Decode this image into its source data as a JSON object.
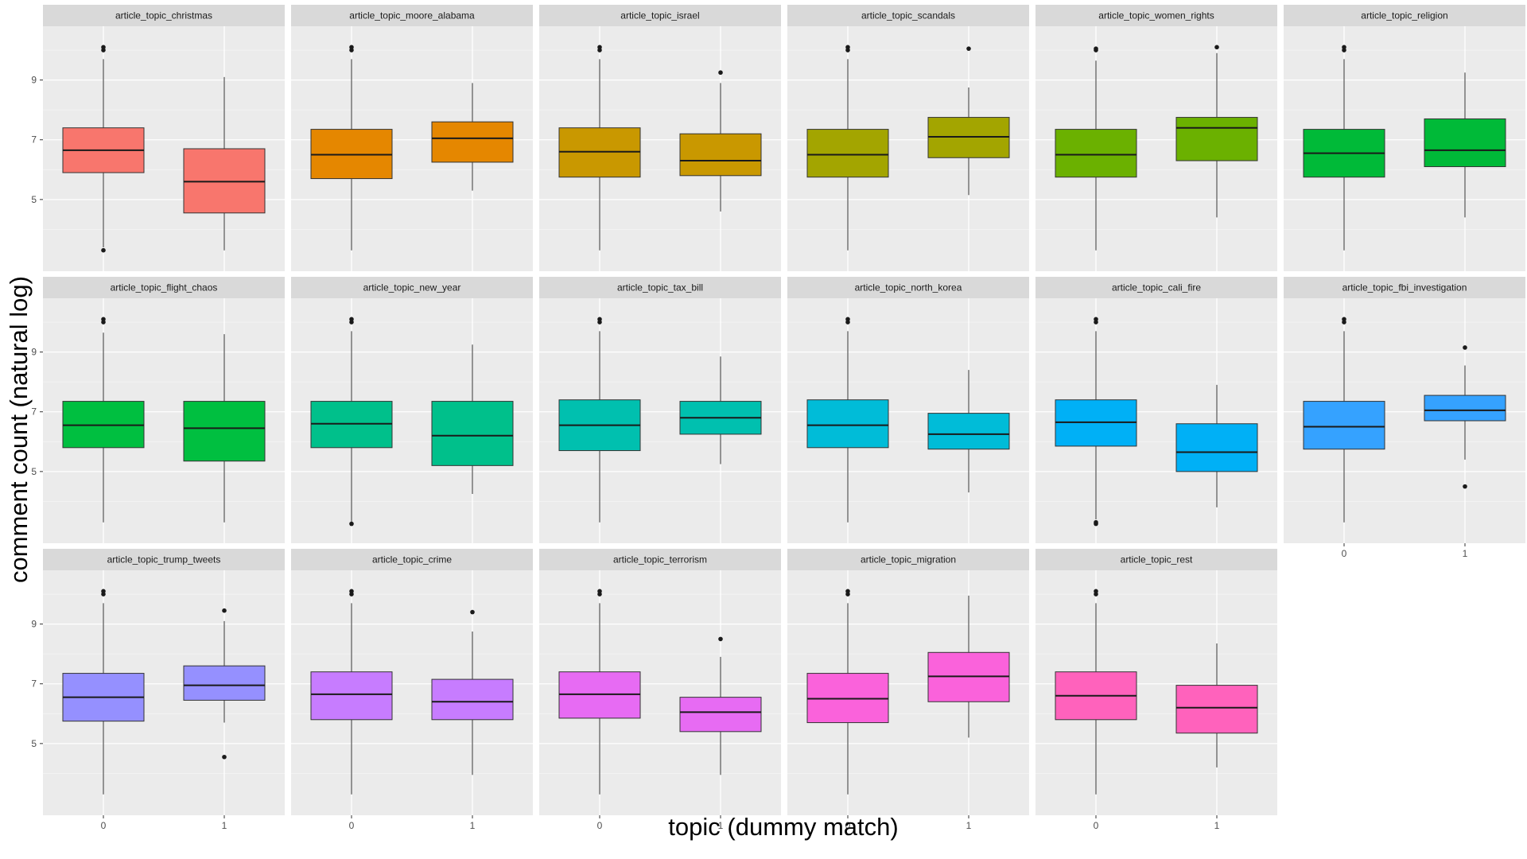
{
  "chart_data": {
    "type": "boxplot",
    "xlabel": "topic (dummy match)",
    "ylabel": "comment count (natural log)",
    "x_categories": [
      "0",
      "1"
    ],
    "y_ticks": [
      5,
      7,
      9
    ],
    "ylim": [
      2.6,
      10.8
    ],
    "grid": true,
    "legend": "none",
    "facets": [
      {
        "name": "article_topic_christmas",
        "color": "#F8766D",
        "boxes": [
          {
            "x": "0",
            "min": 3.4,
            "q1": 5.9,
            "median": 6.65,
            "q3": 7.4,
            "max": 9.7,
            "outliers": [
              10.0,
              10.1,
              3.3
            ]
          },
          {
            "x": "1",
            "min": 3.3,
            "q1": 4.55,
            "median": 5.6,
            "q3": 6.7,
            "max": 9.1,
            "outliers": []
          }
        ]
      },
      {
        "name": "article_topic_moore_alabama",
        "color": "#E58700",
        "boxes": [
          {
            "x": "0",
            "min": 3.3,
            "q1": 5.7,
            "median": 6.5,
            "q3": 7.35,
            "max": 9.7,
            "outliers": [
              10.0,
              10.1
            ]
          },
          {
            "x": "1",
            "min": 5.3,
            "q1": 6.25,
            "median": 7.05,
            "q3": 7.6,
            "max": 8.9,
            "outliers": []
          }
        ]
      },
      {
        "name": "article_topic_israel",
        "color": "#C99800",
        "boxes": [
          {
            "x": "0",
            "min": 3.3,
            "q1": 5.75,
            "median": 6.6,
            "q3": 7.4,
            "max": 9.7,
            "outliers": [
              10.0,
              10.1
            ]
          },
          {
            "x": "1",
            "min": 4.6,
            "q1": 5.8,
            "median": 6.3,
            "q3": 7.2,
            "max": 8.9,
            "outliers": [
              9.25
            ]
          }
        ]
      },
      {
        "name": "article_topic_scandals",
        "color": "#A3A500",
        "boxes": [
          {
            "x": "0",
            "min": 3.3,
            "q1": 5.75,
            "median": 6.5,
            "q3": 7.35,
            "max": 9.7,
            "outliers": [
              10.0,
              10.1
            ]
          },
          {
            "x": "1",
            "min": 5.15,
            "q1": 6.4,
            "median": 7.1,
            "q3": 7.75,
            "max": 8.75,
            "outliers": [
              10.05
            ]
          }
        ]
      },
      {
        "name": "article_topic_women_rights",
        "color": "#6BB100",
        "boxes": [
          {
            "x": "0",
            "min": 3.3,
            "q1": 5.75,
            "median": 6.5,
            "q3": 7.35,
            "max": 9.65,
            "outliers": [
              10.0,
              10.05
            ]
          },
          {
            "x": "1",
            "min": 4.4,
            "q1": 6.3,
            "median": 7.4,
            "q3": 7.75,
            "max": 9.9,
            "outliers": [
              10.1
            ]
          }
        ]
      },
      {
        "name": "article_topic_religion",
        "color": "#00BA38",
        "boxes": [
          {
            "x": "0",
            "min": 3.3,
            "q1": 5.75,
            "median": 6.55,
            "q3": 7.35,
            "max": 9.7,
            "outliers": [
              10.0,
              10.1
            ]
          },
          {
            "x": "1",
            "min": 4.4,
            "q1": 6.1,
            "median": 6.65,
            "q3": 7.7,
            "max": 9.25,
            "outliers": []
          }
        ]
      },
      {
        "name": "article_topic_flight_chaos",
        "color": "#00BF40",
        "boxes": [
          {
            "x": "0",
            "min": 3.3,
            "q1": 5.8,
            "median": 6.55,
            "q3": 7.35,
            "max": 9.65,
            "outliers": [
              10.0,
              10.1
            ]
          },
          {
            "x": "1",
            "min": 3.3,
            "q1": 5.35,
            "median": 6.45,
            "q3": 7.35,
            "max": 9.6,
            "outliers": []
          }
        ]
      },
      {
        "name": "article_topic_new_year",
        "color": "#00C08B",
        "boxes": [
          {
            "x": "0",
            "min": 3.3,
            "q1": 5.8,
            "median": 6.6,
            "q3": 7.35,
            "max": 9.7,
            "outliers": [
              10.0,
              10.1,
              3.25
            ]
          },
          {
            "x": "1",
            "min": 4.25,
            "q1": 5.2,
            "median": 6.2,
            "q3": 7.35,
            "max": 9.25,
            "outliers": []
          }
        ]
      },
      {
        "name": "article_topic_tax_bill",
        "color": "#00C0AF",
        "boxes": [
          {
            "x": "0",
            "min": 3.3,
            "q1": 5.7,
            "median": 6.55,
            "q3": 7.4,
            "max": 9.7,
            "outliers": [
              10.0,
              10.1
            ]
          },
          {
            "x": "1",
            "min": 5.25,
            "q1": 6.25,
            "median": 6.8,
            "q3": 7.35,
            "max": 8.85,
            "outliers": []
          }
        ]
      },
      {
        "name": "article_topic_north_korea",
        "color": "#00BCD8",
        "boxes": [
          {
            "x": "0",
            "min": 3.3,
            "q1": 5.8,
            "median": 6.55,
            "q3": 7.4,
            "max": 9.7,
            "outliers": [
              10.0,
              10.1
            ]
          },
          {
            "x": "1",
            "min": 4.3,
            "q1": 5.75,
            "median": 6.25,
            "q3": 6.95,
            "max": 8.4,
            "outliers": []
          }
        ]
      },
      {
        "name": "article_topic_cali_fire",
        "color": "#00B0F6",
        "boxes": [
          {
            "x": "0",
            "min": 3.4,
            "q1": 5.85,
            "median": 6.65,
            "q3": 7.4,
            "max": 9.7,
            "outliers": [
              10.0,
              10.1,
              3.3,
              3.25
            ]
          },
          {
            "x": "1",
            "min": 3.8,
            "q1": 5.0,
            "median": 5.65,
            "q3": 6.6,
            "max": 7.9,
            "outliers": []
          }
        ]
      },
      {
        "name": "article_topic_fbi_investigation",
        "color": "#35A2FF",
        "boxes": [
          {
            "x": "0",
            "min": 3.3,
            "q1": 5.75,
            "median": 6.5,
            "q3": 7.35,
            "max": 9.7,
            "outliers": [
              10.0,
              10.1
            ]
          },
          {
            "x": "1",
            "min": 5.4,
            "q1": 6.7,
            "median": 7.05,
            "q3": 7.55,
            "max": 8.55,
            "outliers": [
              9.15,
              4.5
            ]
          }
        ]
      },
      {
        "name": "article_topic_trump_tweets",
        "color": "#9590FF",
        "boxes": [
          {
            "x": "0",
            "min": 3.3,
            "q1": 5.75,
            "median": 6.55,
            "q3": 7.35,
            "max": 9.7,
            "outliers": [
              10.0,
              10.1
            ]
          },
          {
            "x": "1",
            "min": 5.7,
            "q1": 6.45,
            "median": 6.95,
            "q3": 7.6,
            "max": 9.1,
            "outliers": [
              9.45,
              4.55
            ]
          }
        ]
      },
      {
        "name": "article_topic_crime",
        "color": "#C77CFF",
        "boxes": [
          {
            "x": "0",
            "min": 3.3,
            "q1": 5.8,
            "median": 6.65,
            "q3": 7.4,
            "max": 9.7,
            "outliers": [
              10.0,
              10.1
            ]
          },
          {
            "x": "1",
            "min": 3.95,
            "q1": 5.8,
            "median": 6.4,
            "q3": 7.15,
            "max": 8.75,
            "outliers": [
              9.4
            ]
          }
        ]
      },
      {
        "name": "article_topic_terrorism",
        "color": "#E76BF3",
        "boxes": [
          {
            "x": "0",
            "min": 3.3,
            "q1": 5.85,
            "median": 6.65,
            "q3": 7.4,
            "max": 9.7,
            "outliers": [
              10.0,
              10.1
            ]
          },
          {
            "x": "1",
            "min": 3.95,
            "q1": 5.4,
            "median": 6.05,
            "q3": 6.55,
            "max": 7.9,
            "outliers": [
              8.5
            ]
          }
        ]
      },
      {
        "name": "article_topic_migration",
        "color": "#FA62DB",
        "boxes": [
          {
            "x": "0",
            "min": 3.3,
            "q1": 5.7,
            "median": 6.5,
            "q3": 7.35,
            "max": 9.7,
            "outliers": [
              10.0,
              10.1
            ]
          },
          {
            "x": "1",
            "min": 5.2,
            "q1": 6.4,
            "median": 7.25,
            "q3": 8.05,
            "max": 9.95,
            "outliers": []
          }
        ]
      },
      {
        "name": "article_topic_rest",
        "color": "#FF62BC",
        "boxes": [
          {
            "x": "0",
            "min": 3.3,
            "q1": 5.8,
            "median": 6.6,
            "q3": 7.4,
            "max": 9.7,
            "outliers": [
              10.0,
              10.1
            ]
          },
          {
            "x": "1",
            "min": 4.2,
            "q1": 5.35,
            "median": 6.2,
            "q3": 6.95,
            "max": 8.35,
            "outliers": []
          }
        ]
      }
    ]
  }
}
